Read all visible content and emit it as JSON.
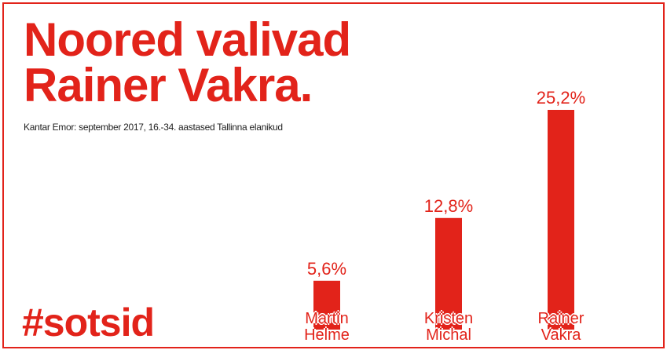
{
  "chart_data": {
    "type": "bar",
    "title": "Noored valivad Rainer Vakra.",
    "subtitle": "Kantar Emor: september 2017, 16.-34. aastased Tallinna elanikud",
    "hashtag": "#sotsid",
    "categories": [
      "Martin Helme",
      "Kristen Michal",
      "Rainer Vakra"
    ],
    "values": [
      5.6,
      12.8,
      25.2
    ],
    "value_labels": [
      "5,6%",
      "12,8%",
      "25,2%"
    ],
    "color": "#e2231a"
  }
}
